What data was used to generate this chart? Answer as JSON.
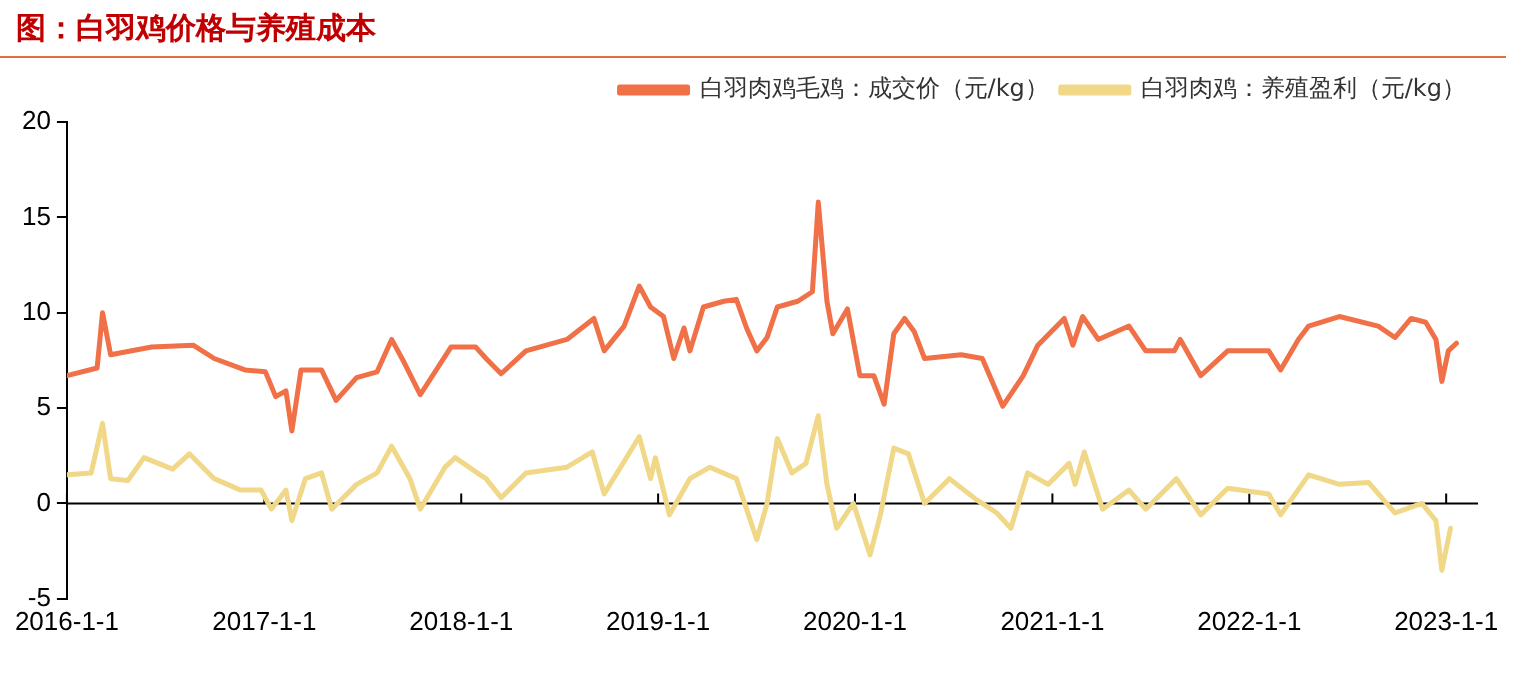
{
  "chart_data": {
    "type": "line",
    "title": "图：白羽鸡价格与养殖成本",
    "xlim": [
      "2016-01-01",
      "2023-03-01"
    ],
    "xticks": [
      {
        "value": "2016-01-01",
        "label": "2016-1-1"
      },
      {
        "value": "2017-01-01",
        "label": "2017-1-1"
      },
      {
        "value": "2018-01-01",
        "label": "2018-1-1"
      },
      {
        "value": "2019-01-01",
        "label": "2019-1-1"
      },
      {
        "value": "2020-01-01",
        "label": "2020-1-1"
      },
      {
        "value": "2021-01-01",
        "label": "2021-1-1"
      },
      {
        "value": "2022-01-01",
        "label": "2022-1-1"
      },
      {
        "value": "2023-01-01",
        "label": "2023-1-1"
      }
    ],
    "ylim": [
      -5,
      20
    ],
    "yticks": [
      -5,
      0,
      5,
      10,
      15,
      20
    ],
    "legend": "top",
    "marker": "none",
    "line_style": "solid",
    "series": [
      {
        "name": "白羽肉鸡毛鸡：成交价（元/kg）",
        "color": "#f07048",
        "x": [
          "2016-01-01",
          "2016-02-26",
          "2016-03-07",
          "2016-03-22",
          "2016-06-06",
          "2016-08-22",
          "2016-09-30",
          "2016-11-26",
          "2017-01-03",
          "2017-01-22",
          "2017-02-10",
          "2017-02-21",
          "2017-03-10",
          "2017-04-17",
          "2017-05-14",
          "2017-06-21",
          "2017-07-29",
          "2017-08-25",
          "2017-09-17",
          "2017-10-17",
          "2017-12-13",
          "2018-01-28",
          "2018-02-16",
          "2018-03-16",
          "2018-05-01",
          "2018-07-16",
          "2018-09-04",
          "2018-09-23",
          "2018-10-30",
          "2018-11-27",
          "2018-12-18",
          "2019-01-11",
          "2019-01-30",
          "2019-02-18",
          "2019-03-01",
          "2019-03-26",
          "2019-05-03",
          "2019-05-26",
          "2019-06-14",
          "2019-07-03",
          "2019-07-22",
          "2019-08-10",
          "2019-09-17",
          "2019-10-14",
          "2019-10-25",
          "2019-11-10",
          "2019-11-21",
          "2019-12-18",
          "2020-01-10",
          "2020-02-05",
          "2020-02-24",
          "2020-03-13",
          "2020-04-02",
          "2020-04-20",
          "2020-05-09",
          "2020-07-16",
          "2020-08-24",
          "2020-10-01",
          "2020-11-08",
          "2020-12-05",
          "2021-01-23",
          "2021-02-08",
          "2021-02-26",
          "2021-03-27",
          "2021-05-23",
          "2021-06-23",
          "2021-08-15",
          "2021-08-26",
          "2021-10-03",
          "2021-11-22",
          "2022-02-06",
          "2022-02-28",
          "2022-04-02",
          "2022-04-21",
          "2022-06-17",
          "2022-08-28",
          "2022-09-28",
          "2022-10-28",
          "2022-11-24",
          "2022-12-13",
          "2022-12-24",
          "2023-01-05",
          "2023-01-20"
        ],
        "values": [
          6.7,
          7.1,
          10.0,
          7.8,
          8.2,
          8.3,
          7.6,
          7.0,
          6.9,
          5.6,
          5.9,
          3.8,
          7.0,
          7.0,
          5.4,
          6.6,
          6.9,
          8.6,
          7.4,
          5.7,
          8.2,
          8.2,
          7.6,
          6.8,
          8.0,
          8.6,
          9.7,
          8.0,
          9.3,
          11.4,
          10.3,
          9.8,
          7.6,
          9.2,
          8.0,
          10.3,
          10.6,
          10.7,
          9.2,
          8.0,
          8.7,
          10.3,
          10.6,
          11.1,
          15.8,
          10.6,
          8.9,
          10.2,
          6.7,
          6.7,
          5.2,
          8.9,
          9.7,
          9.0,
          7.6,
          7.8,
          7.6,
          5.1,
          6.7,
          8.3,
          9.7,
          8.3,
          9.8,
          8.6,
          9.3,
          8.0,
          8.0,
          8.6,
          6.7,
          8.0,
          8.0,
          7.0,
          8.6,
          9.3,
          9.8,
          9.3,
          8.7,
          9.7,
          9.5,
          8.6,
          6.4,
          8.0,
          8.4
        ]
      },
      {
        "name": "白羽肉鸡：养殖盈利（元/kg）",
        "color": "#f0d888",
        "x": [
          "2016-01-01",
          "2016-02-15",
          "2016-03-07",
          "2016-03-22",
          "2016-04-23",
          "2016-05-23",
          "2016-07-15",
          "2016-08-15",
          "2016-09-30",
          "2016-11-18",
          "2016-12-26",
          "2017-01-14",
          "2017-02-10",
          "2017-02-21",
          "2017-03-18",
          "2017-04-17",
          "2017-05-06",
          "2017-06-21",
          "2017-07-29",
          "2017-08-25",
          "2017-09-28",
          "2017-10-17",
          "2017-12-02",
          "2017-12-21",
          "2018-02-05",
          "2018-02-16",
          "2018-03-16",
          "2018-05-01",
          "2018-07-16",
          "2018-09-01",
          "2018-09-23",
          "2018-10-30",
          "2018-11-27",
          "2018-12-18",
          "2018-12-27",
          "2019-01-22",
          "2019-03-01",
          "2019-04-07",
          "2019-05-26",
          "2019-06-14",
          "2019-07-03",
          "2019-07-22",
          "2019-08-10",
          "2019-09-06",
          "2019-10-02",
          "2019-10-25",
          "2019-11-10",
          "2019-11-28",
          "2019-12-29",
          "2020-01-29",
          "2020-02-17",
          "2020-03-13",
          "2020-04-09",
          "2020-05-09",
          "2020-06-24",
          "2020-08-13",
          "2020-09-20",
          "2020-10-16",
          "2020-11-16",
          "2020-12-24",
          "2021-02-01",
          "2021-02-12",
          "2021-03-01",
          "2021-04-04",
          "2021-05-23",
          "2021-06-23",
          "2021-08-19",
          "2021-10-03",
          "2021-11-22",
          "2022-02-06",
          "2022-02-28",
          "2022-04-21",
          "2022-06-17",
          "2022-08-10",
          "2022-09-28",
          "2022-11-17",
          "2022-12-13",
          "2022-12-24",
          "2023-01-09"
        ],
        "values": [
          1.5,
          1.6,
          4.2,
          1.3,
          1.2,
          2.4,
          1.8,
          2.6,
          1.3,
          0.7,
          0.7,
          -0.3,
          0.7,
          -0.9,
          1.3,
          1.6,
          -0.3,
          1.0,
          1.6,
          3.0,
          1.3,
          -0.3,
          1.9,
          2.4,
          1.5,
          1.3,
          0.3,
          1.6,
          1.9,
          2.7,
          0.5,
          2.2,
          3.5,
          1.3,
          2.4,
          -0.6,
          1.3,
          1.9,
          1.3,
          -0.3,
          -1.9,
          0.0,
          3.4,
          1.6,
          2.1,
          4.6,
          1.0,
          -1.3,
          0.0,
          -2.7,
          -0.6,
          2.9,
          2.6,
          0.0,
          1.3,
          0.2,
          -0.5,
          -1.3,
          1.6,
          1.0,
          2.1,
          1.0,
          2.7,
          -0.3,
          0.7,
          -0.3,
          1.3,
          -0.6,
          0.8,
          0.5,
          -0.6,
          1.5,
          1.0,
          1.1,
          -0.5,
          0.0,
          -0.9,
          -3.5,
          -1.3
        ]
      }
    ]
  }
}
